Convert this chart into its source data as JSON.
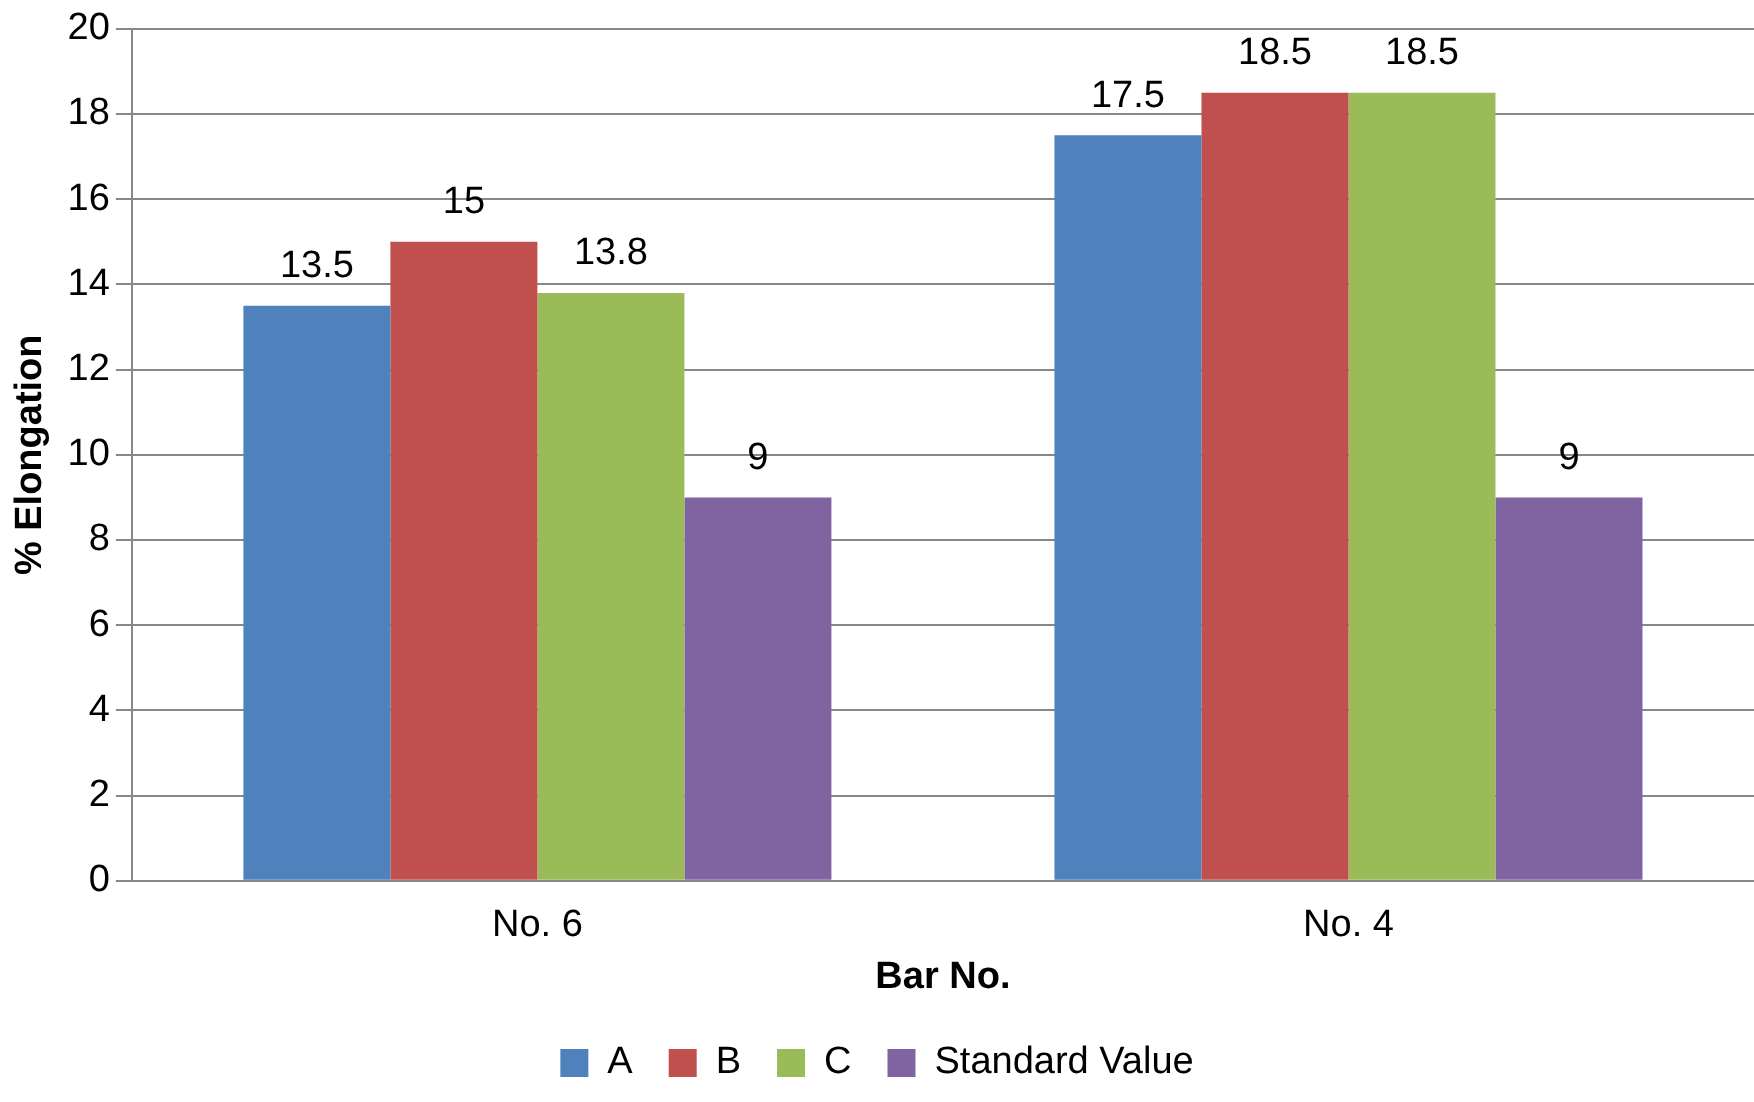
{
  "chart_data": {
    "type": "bar",
    "xlabel": "Bar No.",
    "ylabel": "% Elongation",
    "categories": [
      "No. 6",
      "No. 4"
    ],
    "series": [
      {
        "name": "A",
        "color": "#4f81bd",
        "values": [
          13.5,
          17.5
        ]
      },
      {
        "name": "B",
        "color": "#c0504d",
        "values": [
          15,
          18.5
        ]
      },
      {
        "name": "C",
        "color": "#9bbb59",
        "values": [
          13.8,
          18.5
        ]
      },
      {
        "name": "Standard Value",
        "color": "#8064a2",
        "values": [
          9,
          9
        ]
      }
    ],
    "ylim": [
      0,
      20
    ],
    "yticks": [
      0,
      2,
      4,
      6,
      8,
      10,
      12,
      14,
      16,
      18,
      20
    ],
    "grid": "y",
    "legend": "bottom",
    "data_labels": true
  }
}
